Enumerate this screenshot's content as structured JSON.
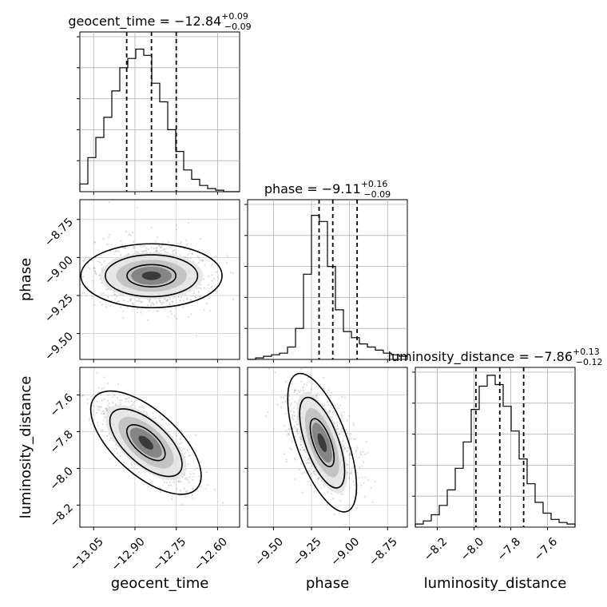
{
  "chart_data": {
    "type": "corner",
    "grid": true,
    "parameters": [
      {
        "name": "geocent_time",
        "range": [
          -13.1,
          -12.52
        ],
        "ticks": [
          -13.05,
          -12.9,
          -12.75,
          -12.6
        ],
        "tick_labels": [
          "−13.05",
          "−12.90",
          "−12.75",
          "−12.60"
        ],
        "quantiles": [
          -12.93,
          -12.84,
          -12.75
        ],
        "title": {
          "prefix": "geocent_time = −12.84",
          "plus": "+0.09",
          "minus": "−0.09"
        },
        "hist_bins": [
          -13.1,
          -13.071,
          -13.042,
          -13.013,
          -12.984,
          -12.955,
          -12.926,
          -12.897,
          -12.868,
          -12.839,
          -12.81,
          -12.781,
          -12.752,
          -12.723,
          -12.694,
          -12.665,
          -12.636,
          -12.607,
          -12.578,
          -12.549,
          -12.52
        ],
        "hist_counts": [
          0.05,
          0.22,
          0.35,
          0.48,
          0.65,
          0.8,
          0.86,
          0.92,
          0.88,
          0.7,
          0.58,
          0.4,
          0.26,
          0.14,
          0.08,
          0.04,
          0.02,
          0.01,
          0,
          0
        ]
      },
      {
        "name": "phase",
        "range": [
          -9.67,
          -8.62
        ],
        "ticks": [
          -9.5,
          -9.25,
          -9.0,
          -8.75
        ],
        "tick_labels": [
          "−9.50",
          "−9.25",
          "−9.00",
          "−8.75"
        ],
        "quantiles": [
          -9.2,
          -9.11,
          -8.95
        ],
        "title": {
          "prefix": "phase = −9.11",
          "plus": "+0.16",
          "minus": "−0.09"
        },
        "hist_bins": [
          -9.67,
          -9.6175,
          -9.565,
          -9.5125,
          -9.46,
          -9.4075,
          -9.355,
          -9.3025,
          -9.25,
          -9.1975,
          -9.145,
          -9.0925,
          -9.04,
          -8.9875,
          -8.935,
          -8.8825,
          -8.83,
          -8.7775,
          -8.725,
          -8.6725,
          -8.62
        ],
        "hist_counts": [
          0,
          0.01,
          0.02,
          0.03,
          0.04,
          0.08,
          0.2,
          0.55,
          0.93,
          0.89,
          0.6,
          0.32,
          0.18,
          0.14,
          0.1,
          0.08,
          0.06,
          0.04,
          0.03,
          0.02
        ]
      },
      {
        "name": "luminosity_distance",
        "range": [
          -8.32,
          -7.45
        ],
        "ticks": [
          -8.2,
          -8.0,
          -7.8,
          -7.6
        ],
        "tick_labels": [
          "−8.2",
          "−8.0",
          "−7.8",
          "−7.6"
        ],
        "quantiles": [
          -7.99,
          -7.86,
          -7.73
        ],
        "title": {
          "prefix": "luminosity_distance = −7.86",
          "plus": "+0.13",
          "minus": "−0.12"
        },
        "hist_bins": [
          -8.32,
          -8.2765,
          -8.233,
          -8.1895,
          -8.146,
          -8.1025,
          -8.059,
          -8.0155,
          -7.972,
          -7.9285,
          -7.885,
          -7.8415,
          -7.798,
          -7.7545,
          -7.711,
          -7.6675,
          -7.624,
          -7.5805,
          -7.537,
          -7.4935,
          -7.45
        ],
        "hist_counts": [
          0.02,
          0.04,
          0.08,
          0.14,
          0.24,
          0.38,
          0.55,
          0.76,
          0.91,
          0.98,
          0.92,
          0.78,
          0.62,
          0.44,
          0.28,
          0.16,
          0.09,
          0.05,
          0.03,
          0.02
        ]
      }
    ],
    "pair_means": {
      "1_0": [
        -12.84,
        -9.12
      ],
      "2_0": [
        -12.86,
        -7.86
      ],
      "2_1": [
        -9.18,
        -7.86
      ]
    }
  }
}
